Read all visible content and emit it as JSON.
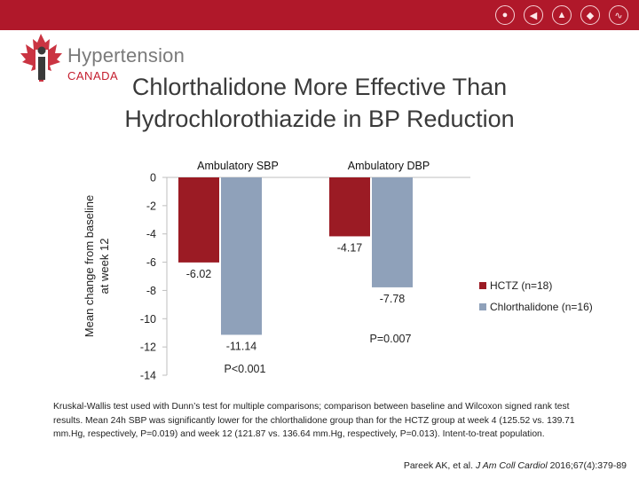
{
  "header": {
    "logo_line1": "Hypertension",
    "logo_line2": "CANADA",
    "icons": [
      "apple-icon",
      "megaphone-icon",
      "microscope-icon",
      "pill-icon",
      "stethoscope-icon"
    ],
    "bar_color": "#b0182a"
  },
  "title_line1": "Chlorthalidone More Effective Than",
  "title_line2": "Hydrochlorothiazide in BP Reduction",
  "chart_data": {
    "type": "bar",
    "categories": [
      "Ambulatory SBP",
      "Ambulatory DBP"
    ],
    "series": [
      {
        "name": "HCTZ (n=18)",
        "color": "#9b1b24",
        "values": [
          -6.02,
          -4.17
        ]
      },
      {
        "name": "Chlorthalidone (n=16)",
        "color": "#8fa1ba",
        "values": [
          -11.14,
          -7.78
        ]
      }
    ],
    "data_labels": [
      [
        "-6.02",
        "-4.17"
      ],
      [
        "-11.14",
        "-7.78"
      ]
    ],
    "p_values": [
      "P<0.001",
      "P=0.007"
    ],
    "ylabel_line1": "Mean change from baseline",
    "ylabel_line2": "at week 12",
    "xlabel": "",
    "ylim": [
      -14,
      0
    ],
    "yticks": [
      "0",
      "-2",
      "-4",
      "-6",
      "-8",
      "-10",
      "-12",
      "-14"
    ],
    "legend_position": "right"
  },
  "footnote": "Kruskal-Wallis test used with Dunn’s test for multiple comparisons; comparison between baseline and Wilcoxon signed rank test results. Mean 24h SBP was significantly lower for the chlorthalidone group than for the HCTZ group at week 4 (125.52 vs. 139.71 mm.Hg, respectively, P=0.019) and week 12 (121.87 vs. 136.64 mm.Hg, respectively, P=0.013). Intent-to-treat population.",
  "citation": {
    "authors": "Pareek AK, et al.",
    "journal": "J Am Coll Cardiol",
    "details": "2016;67(4):379-89"
  }
}
